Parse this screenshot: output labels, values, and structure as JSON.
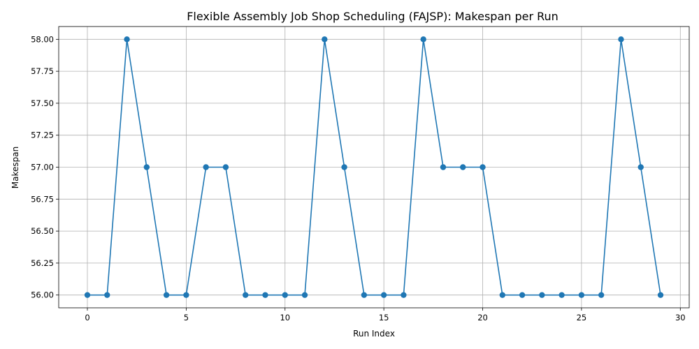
{
  "chart_data": {
    "type": "line",
    "title": "Flexible Assembly Job Shop Scheduling (FAJSP): Makespan per Run",
    "xlabel": "Run Index",
    "ylabel": "Makespan",
    "x": [
      0,
      1,
      2,
      3,
      4,
      5,
      6,
      7,
      8,
      9,
      10,
      11,
      12,
      13,
      14,
      15,
      16,
      17,
      18,
      19,
      20,
      21,
      22,
      23,
      24,
      25,
      26,
      27,
      28,
      29
    ],
    "series": [
      {
        "values": [
          56,
          56,
          58,
          57,
          56,
          56,
          57,
          57,
          56,
          56,
          56,
          56,
          58,
          57,
          56,
          56,
          56,
          58,
          57,
          57,
          57,
          56,
          56,
          56,
          56,
          56,
          56,
          58,
          57,
          56
        ],
        "color": "#1f77b4",
        "marker": "circle"
      }
    ],
    "xlim": [
      -1.45,
      30.45
    ],
    "ylim": [
      55.9,
      58.1
    ],
    "xticks": [
      0,
      5,
      10,
      15,
      20,
      25,
      30
    ],
    "xtick_labels": [
      "0",
      "5",
      "10",
      "15",
      "20",
      "25",
      "30"
    ],
    "yticks": [
      56.0,
      56.25,
      56.5,
      56.75,
      57.0,
      57.25,
      57.5,
      57.75,
      58.0
    ],
    "ytick_labels": [
      "56.00",
      "56.25",
      "56.50",
      "56.75",
      "57.00",
      "57.25",
      "57.50",
      "57.75",
      "58.00"
    ],
    "grid": true,
    "legend": "none"
  }
}
